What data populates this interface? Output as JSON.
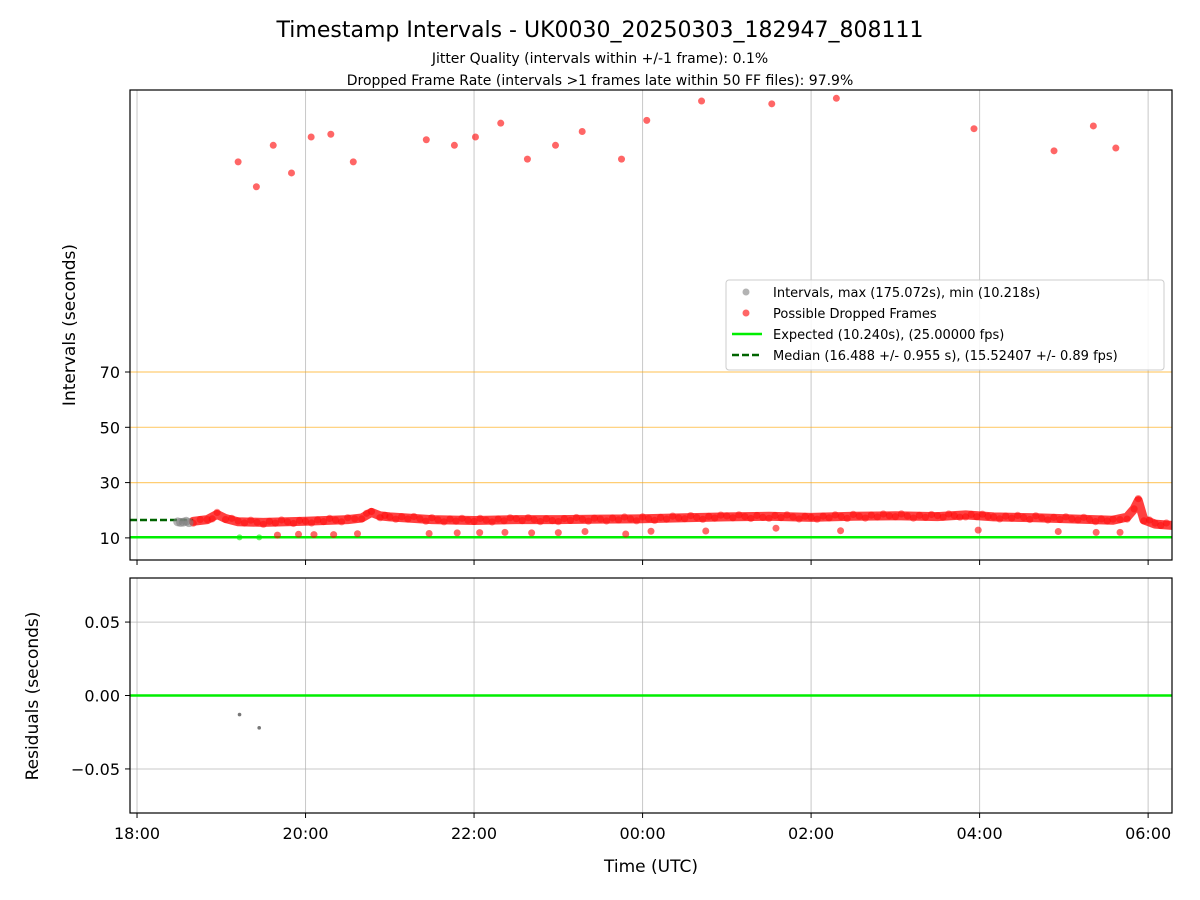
{
  "title": "Timestamp Intervals - UK0030_20250303_182947_808111",
  "subtitle_1": "Jitter Quality (intervals within +/-1 frame): 0.1%",
  "subtitle_2": "Dropped Frame Rate (intervals >1 frames late within 50 FF files): 97.9%",
  "colors": {
    "dropped": "#ff0000",
    "interval": "#808080",
    "expected": "#00ee00",
    "median": "#006400",
    "threshold": "#ffa500",
    "grid": "#b0b0b0"
  },
  "chart_data": [
    {
      "type": "scatter",
      "panel": "top",
      "ylabel": "Intervals (seconds)",
      "y_ticks": [
        10,
        30,
        50,
        70
      ],
      "ylim": [
        2,
        172
      ],
      "xlim": [
        "17:55",
        "06:17"
      ],
      "grid": "vertical",
      "legend_position": "center-right",
      "horizontal_lines": [
        {
          "name": "Expected (10.240s), (25.00000 fps)",
          "y": 10.24,
          "style": "solid"
        },
        {
          "name": "Median (16.488 +/- 0.955 s), (15.52407 +/- 0.89 fps)",
          "y": 16.49,
          "style": "dashed",
          "x_end": "18:40"
        },
        {
          "y": 30,
          "style": "threshold"
        },
        {
          "y": 50,
          "style": "threshold"
        },
        {
          "y": 70,
          "style": "threshold"
        }
      ],
      "series": [
        {
          "name": "Intervals, max (175.072s), min (10.218s)",
          "points": [
            [
              "18:29",
              15.8
            ],
            [
              "18:31",
              15.6
            ],
            [
              "18:33",
              15.7
            ],
            [
              "18:35",
              16.0
            ],
            [
              "18:37",
              15.5
            ],
            [
              "19:13",
              10.2
            ],
            [
              "19:27",
              10.2
            ]
          ]
        },
        {
          "name": "Possible Dropped Frames",
          "points": [
            [
              "19:12",
              146
            ],
            [
              "19:25",
              137
            ],
            [
              "19:37",
              152
            ],
            [
              "19:50",
              142
            ],
            [
              "20:04",
              155
            ],
            [
              "20:18",
              156
            ],
            [
              "20:34",
              146
            ],
            [
              "21:26",
              154
            ],
            [
              "21:46",
              152
            ],
            [
              "22:01",
              155
            ],
            [
              "22:19",
              160
            ],
            [
              "22:38",
              147
            ],
            [
              "22:58",
              152
            ],
            [
              "23:17",
              157
            ],
            [
              "23:45",
              147
            ],
            [
              "00:03",
              161
            ],
            [
              "00:42",
              168
            ],
            [
              "01:32",
              167
            ],
            [
              "02:18",
              169
            ],
            [
              "03:56",
              158
            ],
            [
              "04:53",
              150
            ],
            [
              "05:21",
              159
            ],
            [
              "05:37",
              151
            ],
            [
              "19:40",
              11.0
            ],
            [
              "19:55",
              11.3
            ],
            [
              "20:06",
              11.2
            ],
            [
              "20:20",
              11.2
            ],
            [
              "20:37",
              11.5
            ],
            [
              "21:28",
              11.6
            ],
            [
              "21:48",
              11.8
            ],
            [
              "22:04",
              11.9
            ],
            [
              "22:22",
              12.0
            ],
            [
              "22:41",
              11.8
            ],
            [
              "23:00",
              11.9
            ],
            [
              "23:19",
              12.3
            ],
            [
              "23:48",
              11.4
            ],
            [
              "00:06",
              12.4
            ],
            [
              "00:45",
              12.5
            ],
            [
              "01:35",
              13.5
            ],
            [
              "02:21",
              12.6
            ],
            [
              "03:59",
              12.8
            ],
            [
              "04:56",
              12.3
            ],
            [
              "05:23",
              12.0
            ],
            [
              "05:40",
              12.0
            ]
          ],
          "trend": [
            [
              "18:40",
              16.0
            ],
            [
              "18:50",
              16.6
            ],
            [
              "18:57",
              18.5
            ],
            [
              "19:03",
              17.0
            ],
            [
              "19:12",
              15.8
            ],
            [
              "19:30",
              15.6
            ],
            [
              "20:00",
              16.0
            ],
            [
              "20:30",
              16.6
            ],
            [
              "20:40",
              17.2
            ],
            [
              "20:47",
              19.2
            ],
            [
              "20:53",
              18.0
            ],
            [
              "21:00",
              17.6
            ],
            [
              "21:30",
              16.6
            ],
            [
              "22:00",
              16.3
            ],
            [
              "22:30",
              16.6
            ],
            [
              "23:00",
              16.6
            ],
            [
              "23:30",
              16.8
            ],
            [
              "00:00",
              16.9
            ],
            [
              "00:30",
              17.3
            ],
            [
              "01:00",
              17.6
            ],
            [
              "01:30",
              17.8
            ],
            [
              "02:00",
              17.4
            ],
            [
              "02:30",
              17.8
            ],
            [
              "03:00",
              18.0
            ],
            [
              "03:30",
              17.7
            ],
            [
              "03:50",
              18.3
            ],
            [
              "04:10",
              17.6
            ],
            [
              "04:40",
              17.3
            ],
            [
              "05:10",
              16.8
            ],
            [
              "05:35",
              16.4
            ],
            [
              "05:45",
              17.5
            ],
            [
              "05:50",
              20.5
            ],
            [
              "05:53",
              23.5
            ],
            [
              "05:57",
              16.5
            ],
            [
              "06:05",
              15.0
            ],
            [
              "06:17",
              14.5
            ]
          ]
        }
      ]
    },
    {
      "type": "scatter",
      "panel": "bottom",
      "xlabel": "Time (UTC)",
      "ylabel": "Residuals (seconds)",
      "x_ticks": [
        "18:00",
        "20:00",
        "22:00",
        "00:00",
        "02:00",
        "04:00",
        "06:00"
      ],
      "y_ticks": [
        "0.05",
        "0.00",
        "−0.05"
      ],
      "ylim": [
        -0.08,
        0.08
      ],
      "grid": "both",
      "zero_line": 0,
      "series": [
        {
          "points": [
            [
              "19:13",
              -0.013
            ],
            [
              "19:27",
              -0.022
            ]
          ]
        }
      ]
    }
  ]
}
